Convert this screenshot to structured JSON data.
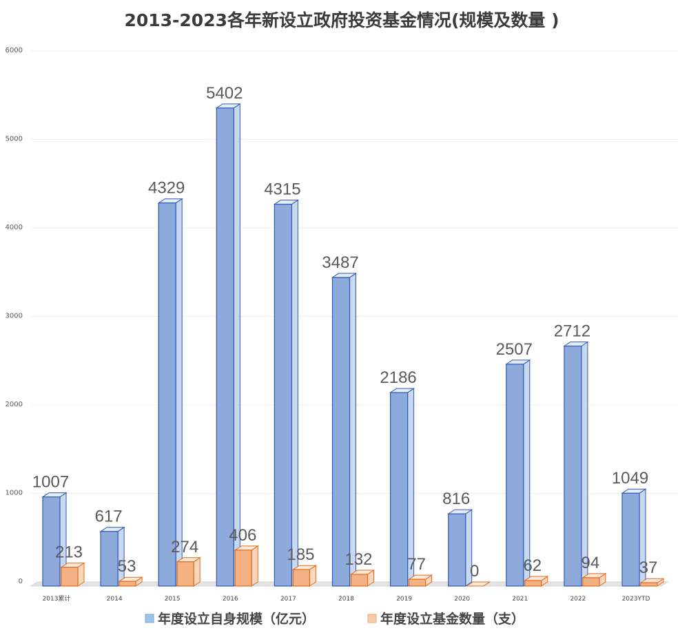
{
  "chart_data": {
    "type": "bar",
    "title": "2013-2023各年新设立政府投资基金情况(规模及数量 )",
    "categories": [
      "2013累计",
      "2014",
      "2015",
      "2016",
      "2017",
      "2018",
      "2019",
      "2020",
      "2021",
      "2022",
      "2023YTD"
    ],
    "series": [
      {
        "name": "年度设立自身规模（亿元）",
        "values": [
          1007,
          617,
          4329,
          5402,
          4315,
          3487,
          2186,
          816,
          2507,
          2712,
          1049
        ]
      },
      {
        "name": "年度设立基金数量（支）",
        "values": [
          213,
          53,
          274,
          406,
          185,
          132,
          77,
          0,
          62,
          94,
          37
        ]
      }
    ],
    "data_labels": [
      [
        "1007",
        "617",
        "4329",
        "5402",
        "4315",
        "3487",
        "2186",
        "816",
        "2507",
        "2712",
        "1049"
      ],
      [
        "213",
        "53",
        "274",
        "406",
        "185",
        "132",
        "77",
        "0",
        "62",
        "94",
        "37"
      ]
    ],
    "yticks": [
      "0",
      "1000",
      "2000",
      "3000",
      "4000",
      "5000",
      "6000"
    ],
    "ylim": [
      0,
      6000
    ],
    "grid": true,
    "legend_position": "bottom",
    "style": "3d-clustered-column",
    "colors": {
      "series1": "#8eaadb",
      "series1_edge": "#2f57b5",
      "series2": "#f4b183",
      "series2_edge": "#e06c1a"
    }
  }
}
